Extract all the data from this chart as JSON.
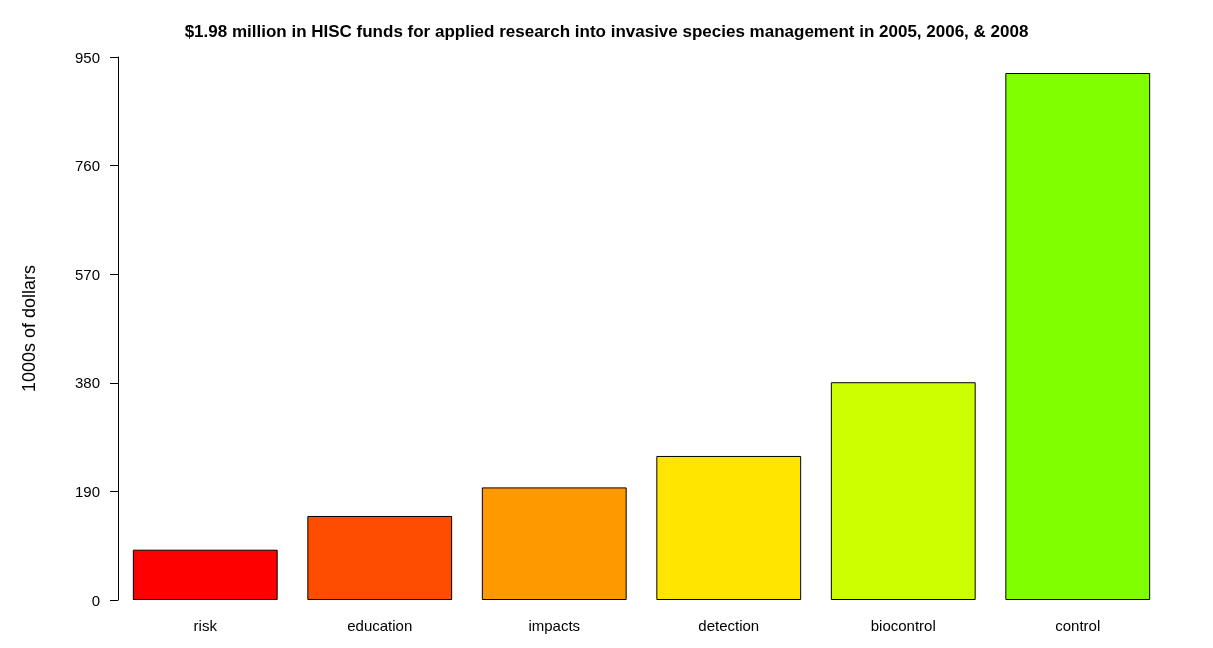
{
  "chart_data": {
    "type": "bar",
    "title": "$1.98 million in HISC funds for applied research into invasive species management in 2005, 2006, & 2008",
    "ylabel": "1000s of dollars",
    "categories": [
      "risk",
      "education",
      "impacts",
      "detection",
      "biocontrol",
      "control"
    ],
    "values": [
      88,
      147,
      197,
      252,
      381,
      922
    ],
    "colors": [
      "#ff0000",
      "#ff4d00",
      "#ff9900",
      "#ffe500",
      "#ccff00",
      "#80ff00"
    ],
    "ylim": [
      0,
      950
    ],
    "yticks": [
      0,
      190,
      380,
      570,
      760,
      950
    ],
    "grid": false
  }
}
